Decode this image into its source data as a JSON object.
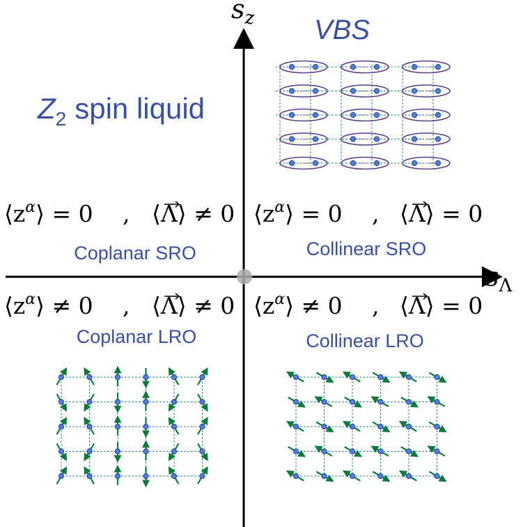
{
  "axes": {
    "vertical": {
      "base": "s",
      "sub": "z"
    },
    "horizontal": {
      "base": "s",
      "sub": "Λ"
    }
  },
  "regions": {
    "vbs_title": "VBS",
    "z2_label": {
      "main": "Z",
      "sub": "2",
      "rest": "spin liquid"
    },
    "top_left": {
      "z_part": {
        "open": "⟨z",
        "sup": "α",
        "close": "⟩ = 0"
      },
      "sep": ",",
      "lambda_part": {
        "open": "⟨",
        "sym": "Λ",
        "close": "⟩ ≠ 0"
      },
      "name": "Coplanar SRO"
    },
    "top_right": {
      "z_part": {
        "open": "⟨z",
        "sup": "α",
        "close": "⟩ = 0"
      },
      "sep": ",",
      "lambda_part": {
        "open": "⟨",
        "sym": "Λ",
        "close": "⟩ = 0"
      },
      "name": "Collinear SRO"
    },
    "bottom_left": {
      "z_part": {
        "open": "⟨z",
        "sup": "α",
        "close": "⟩ ≠ 0"
      },
      "sep": ",",
      "lambda_part": {
        "open": "⟨",
        "sym": "Λ",
        "close": "⟩ ≠ 0"
      },
      "name": "Coplanar LRO"
    },
    "bottom_right": {
      "z_part": {
        "open": "⟨z",
        "sup": "α",
        "close": "⟩ ≠ 0"
      },
      "sep": ",",
      "lambda_part": {
        "open": "⟨",
        "sym": "Λ",
        "close": "⟩ = 0"
      },
      "name": "Collinear LRO"
    }
  },
  "lattices": {
    "vbs": {
      "rows": 5,
      "dimer_columns": 3
    },
    "coplanar": {
      "rows": 5,
      "cols": 6,
      "spin_angles_deg": [
        [
          60,
          120,
          90,
          270,
          120,
          60
        ],
        [
          300,
          240,
          270,
          90,
          240,
          300
        ],
        [
          60,
          120,
          90,
          270,
          120,
          60
        ],
        [
          300,
          240,
          270,
          90,
          240,
          300
        ],
        [
          60,
          120,
          90,
          270,
          120,
          60
        ]
      ]
    },
    "collinear": {
      "rows": 5,
      "cols": 6,
      "spin_angles_deg": [
        [
          150,
          330,
          150,
          330,
          150,
          330
        ],
        [
          330,
          150,
          330,
          150,
          330,
          150
        ],
        [
          150,
          330,
          150,
          330,
          150,
          330
        ],
        [
          330,
          150,
          330,
          150,
          330,
          150
        ],
        [
          150,
          330,
          150,
          330,
          150,
          330
        ]
      ]
    }
  },
  "colors": {
    "axis": "#000000",
    "label_blue": "#3a4fa0",
    "dimer_ellipse": "#5a3d8a",
    "site_fill": "#4f7fd9",
    "site_stroke": "#1f3f99",
    "bond": "#2e8b8b",
    "spin_arrow": "#0b7a3b",
    "origin_dot": "#aaaaaa"
  }
}
